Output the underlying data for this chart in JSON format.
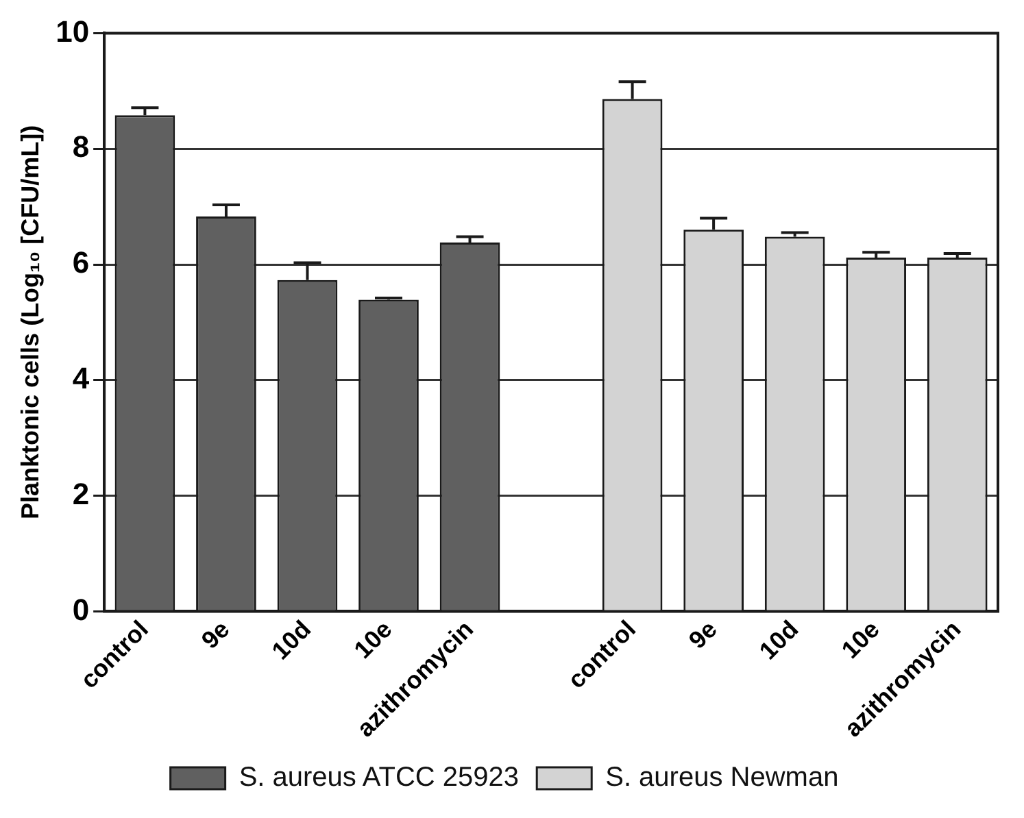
{
  "chart_data": {
    "type": "bar",
    "ylabel": "Planktonic cells (Log₁₀ [CFU/mL])",
    "categories": [
      "control",
      "9e",
      "10d",
      "10e",
      "azithromycin",
      null,
      "control",
      "9e",
      "10d",
      "10e",
      "azithromycin"
    ],
    "series": [
      {
        "name": "S. aureus ATCC 25923",
        "color": "#606060",
        "values": [
          8.58,
          6.83,
          5.73,
          5.39,
          6.38,
          null,
          null,
          null,
          null,
          null,
          null
        ],
        "errors": [
          0.13,
          0.2,
          0.3,
          0.03,
          0.1,
          null,
          null,
          null,
          null,
          null,
          null
        ]
      },
      {
        "name": "S. aureus Newman",
        "color": "#d3d3d3",
        "values": [
          null,
          null,
          null,
          null,
          null,
          null,
          8.86,
          6.6,
          6.48,
          6.12,
          6.12
        ],
        "errors": [
          null,
          null,
          null,
          null,
          null,
          null,
          0.3,
          0.2,
          0.07,
          0.09,
          0.07
        ]
      }
    ],
    "ylim": [
      0,
      10
    ],
    "yticks": [
      0,
      2,
      4,
      6,
      8,
      10
    ],
    "grid": "y",
    "legend": "bottom"
  }
}
